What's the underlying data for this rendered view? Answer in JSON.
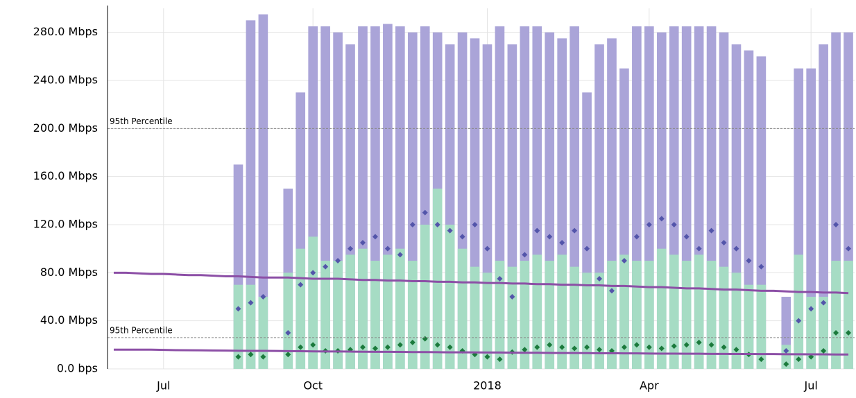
{
  "chart_data": {
    "type": "bar",
    "categories": [
      null,
      null,
      null,
      null,
      "Jul",
      null,
      null,
      null,
      null,
      null,
      null,
      null,
      null,
      null,
      null,
      null,
      "Oct",
      null,
      null,
      null,
      null,
      null,
      null,
      null,
      null,
      null,
      null,
      null,
      null,
      null,
      "2018",
      null,
      null,
      null,
      null,
      null,
      null,
      null,
      null,
      null,
      null,
      null,
      null,
      "Apr",
      null,
      null,
      null,
      null,
      null,
      null,
      null,
      null,
      null,
      null,
      null,
      null,
      "Jul",
      null,
      null,
      null
    ],
    "ylim": [
      0,
      300
    ],
    "yticks": [
      {
        "value": 0,
        "label": "0.0 bps"
      },
      {
        "value": 40,
        "label": "40.0 Mbps"
      },
      {
        "value": 80,
        "label": "80.0 Mbps"
      },
      {
        "value": 120,
        "label": "120.0 Mbps"
      },
      {
        "value": 160,
        "label": "160.0 Mbps"
      },
      {
        "value": 200,
        "label": "200.0 Mbps"
      },
      {
        "value": 240,
        "label": "240.0 Mbps"
      },
      {
        "value": 280,
        "label": "280.0 Mbps"
      }
    ],
    "grid": true,
    "series": [
      {
        "type": "bar",
        "color": "#aaa4d8",
        "values": [
          null,
          null,
          null,
          null,
          null,
          null,
          null,
          null,
          null,
          null,
          170,
          290,
          295,
          null,
          150,
          230,
          285,
          285,
          280,
          270,
          285,
          285,
          287,
          285,
          280,
          285,
          280,
          270,
          280,
          275,
          270,
          285,
          270,
          285,
          285,
          280,
          275,
          285,
          230,
          270,
          275,
          250,
          285,
          285,
          280,
          285,
          285,
          285,
          285,
          280,
          270,
          265,
          260,
          null,
          60,
          250,
          250,
          270,
          280,
          280
        ]
      },
      {
        "type": "bar",
        "color": "#a6dcc4",
        "values": [
          null,
          null,
          null,
          null,
          null,
          null,
          null,
          null,
          null,
          null,
          70,
          70,
          60,
          null,
          80,
          100,
          110,
          90,
          90,
          95,
          100,
          90,
          95,
          100,
          90,
          120,
          150,
          120,
          100,
          85,
          80,
          90,
          85,
          90,
          95,
          90,
          95,
          85,
          80,
          80,
          90,
          95,
          90,
          90,
          100,
          95,
          90,
          95,
          90,
          85,
          80,
          70,
          70,
          null,
          20,
          95,
          60,
          60,
          90,
          90
        ]
      },
      {
        "type": "scatter",
        "color": "#5355aa",
        "values": [
          null,
          null,
          null,
          null,
          null,
          null,
          null,
          null,
          null,
          null,
          50,
          55,
          60,
          null,
          30,
          70,
          80,
          85,
          90,
          100,
          105,
          110,
          100,
          95,
          120,
          130,
          120,
          115,
          110,
          120,
          100,
          75,
          60,
          95,
          115,
          110,
          105,
          115,
          100,
          75,
          65,
          90,
          110,
          120,
          125,
          120,
          110,
          100,
          115,
          105,
          100,
          90,
          85,
          null,
          15,
          40,
          50,
          55,
          120,
          100
        ]
      },
      {
        "type": "scatter",
        "color": "#1b7a3c",
        "values": [
          null,
          null,
          null,
          null,
          null,
          null,
          null,
          null,
          null,
          null,
          10,
          12,
          10,
          null,
          12,
          18,
          20,
          15,
          15,
          16,
          18,
          17,
          18,
          20,
          22,
          25,
          20,
          18,
          15,
          12,
          10,
          8,
          14,
          16,
          18,
          20,
          18,
          17,
          18,
          16,
          15,
          18,
          20,
          18,
          17,
          19,
          20,
          22,
          20,
          18,
          16,
          12,
          8,
          null,
          4,
          8,
          10,
          15,
          30,
          30
        ]
      },
      {
        "type": "line",
        "color": "#8c4fa6",
        "values": [
          80,
          80,
          79.5,
          79,
          79,
          78.5,
          78,
          78,
          77.5,
          77,
          77,
          76.5,
          76,
          76,
          76,
          75.5,
          75,
          75,
          75,
          74.5,
          74,
          74,
          73.5,
          73.5,
          73,
          73,
          72.5,
          72.5,
          72,
          72,
          71.5,
          71.5,
          71,
          71,
          70.5,
          70.5,
          70,
          70,
          69.5,
          69.5,
          69,
          69,
          68.5,
          68,
          68,
          67.5,
          67,
          67,
          66.5,
          66,
          66,
          65.5,
          65,
          65,
          64.5,
          64,
          64,
          63.5,
          63.5,
          63
        ]
      },
      {
        "type": "line",
        "color": "#8c4fa6",
        "values": [
          16,
          16,
          16,
          16,
          15.8,
          15.6,
          15.5,
          15.4,
          15.3,
          15.2,
          15.1,
          15,
          15,
          14.9,
          14.8,
          14.7,
          14.6,
          14.5,
          14.5,
          14.4,
          14.3,
          14.2,
          14.2,
          14.1,
          14,
          14,
          13.9,
          13.8,
          13.8,
          13.7,
          13.6,
          13.6,
          13.5,
          13.4,
          13.4,
          13.3,
          13.2,
          13.2,
          13.1,
          13,
          13,
          12.9,
          12.9,
          12.8,
          12.7,
          12.7,
          12.6,
          12.6,
          12.5,
          12.5,
          12.4,
          12.4,
          12.3,
          12.3,
          12.2,
          12.2,
          12.1,
          12.1,
          12,
          12
        ]
      }
    ],
    "annotations": [
      {
        "text": "95th Percentile",
        "value": 200
      },
      {
        "text": "95th Percentile",
        "value": 26
      }
    ]
  }
}
